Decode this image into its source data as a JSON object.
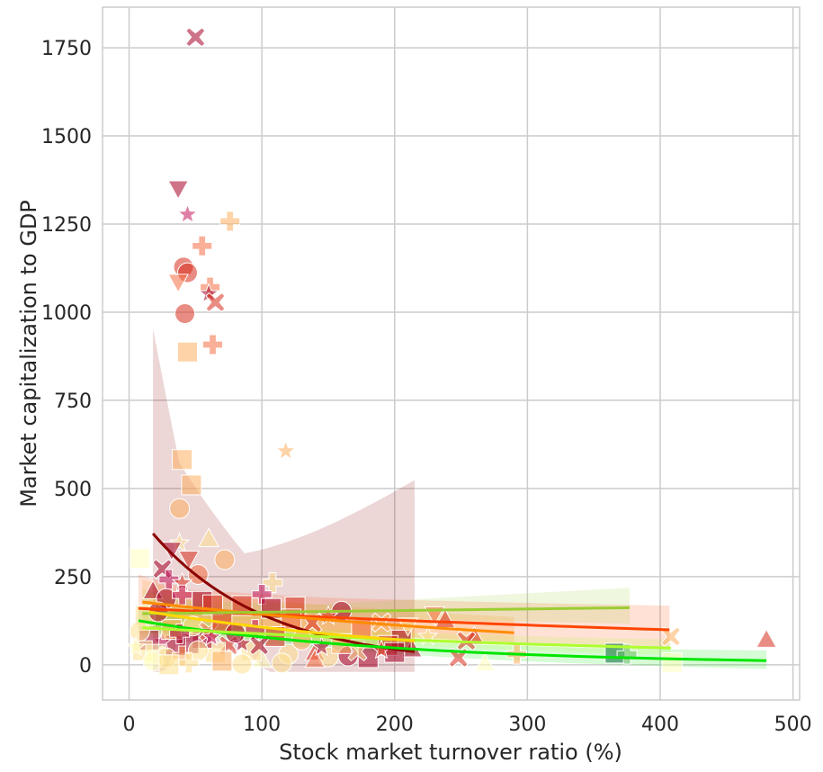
{
  "chart_data": {
    "type": "scatter",
    "title": "",
    "xlabel": "Stock market turnover ratio (%)",
    "ylabel": "Market capitalization to GDP",
    "xlim": [
      -20,
      505
    ],
    "ylim": [
      -100,
      1865
    ],
    "xticks": [
      0,
      100,
      200,
      300,
      400,
      500
    ],
    "yticks": [
      0,
      250,
      500,
      750,
      1000,
      1250,
      1500,
      1750
    ],
    "grid": true,
    "legend": "none",
    "palette": [
      "#a50026",
      "#d7301f",
      "#f46d43",
      "#fdae61",
      "#fee090",
      "#ffffbf",
      "#006837",
      "#66bd63",
      "#9acd32",
      "#00e600"
    ],
    "points": [
      {
        "x": 50,
        "y": 1780,
        "c": "#a50026",
        "m": "x"
      },
      {
        "x": 37,
        "y": 1350,
        "c": "#a50026",
        "m": "v"
      },
      {
        "x": 44,
        "y": 1277,
        "c": "#c2185b",
        "m": "star"
      },
      {
        "x": 76,
        "y": 1258,
        "c": "#fdae61",
        "m": "plus"
      },
      {
        "x": 55,
        "y": 1188,
        "c": "#f46d43",
        "m": "plus"
      },
      {
        "x": 41,
        "y": 1128,
        "c": "#d7301f",
        "m": "o"
      },
      {
        "x": 44,
        "y": 1112,
        "c": "#d7301f",
        "m": "o"
      },
      {
        "x": 37,
        "y": 1085,
        "c": "#f46d43",
        "m": "v"
      },
      {
        "x": 61,
        "y": 1071,
        "c": "#f46d43",
        "m": "plus"
      },
      {
        "x": 60,
        "y": 1052,
        "c": "#a50026",
        "m": "star"
      },
      {
        "x": 65,
        "y": 1028,
        "c": "#d7301f",
        "m": "x"
      },
      {
        "x": 42,
        "y": 996,
        "c": "#d7301f",
        "m": "o"
      },
      {
        "x": 63,
        "y": 908,
        "c": "#f46d43",
        "m": "plus"
      },
      {
        "x": 44,
        "y": 887,
        "c": "#fdae61",
        "m": "s"
      },
      {
        "x": 118,
        "y": 606,
        "c": "#fdae61",
        "m": "star"
      },
      {
        "x": 40,
        "y": 582,
        "c": "#fdae61",
        "m": "s"
      },
      {
        "x": 47,
        "y": 510,
        "c": "#fdae61",
        "m": "s"
      },
      {
        "x": 38,
        "y": 443,
        "c": "#fdae61",
        "m": "o"
      },
      {
        "x": 60,
        "y": 358,
        "c": "#fee090",
        "m": "^"
      },
      {
        "x": 38,
        "y": 345,
        "c": "#fee090",
        "m": "star"
      },
      {
        "x": 72,
        "y": 298,
        "c": "#fdae61",
        "m": "o"
      },
      {
        "x": 8,
        "y": 302,
        "c": "#ffffbf",
        "m": "s"
      },
      {
        "x": 108,
        "y": 233,
        "c": "#fee090",
        "m": "plus"
      },
      {
        "x": 32,
        "y": 325,
        "c": "#a50026",
        "m": "v"
      },
      {
        "x": 45,
        "y": 300,
        "c": "#d7301f",
        "m": "v"
      },
      {
        "x": 25,
        "y": 272,
        "c": "#a50026",
        "m": "x"
      },
      {
        "x": 52,
        "y": 256,
        "c": "#f46d43",
        "m": "o"
      },
      {
        "x": 30,
        "y": 242,
        "c": "#c2185b",
        "m": "plus"
      },
      {
        "x": 40,
        "y": 232,
        "c": "#d7301f",
        "m": "star"
      },
      {
        "x": 18,
        "y": 210,
        "c": "#a50026",
        "m": "^"
      },
      {
        "x": 28,
        "y": 188,
        "c": "#a50026",
        "m": "o"
      },
      {
        "x": 40,
        "y": 198,
        "c": "#c2185b",
        "m": "plus"
      },
      {
        "x": 100,
        "y": 200,
        "c": "#c2185b",
        "m": "plus"
      },
      {
        "x": 55,
        "y": 180,
        "c": "#a50026",
        "m": "s"
      },
      {
        "x": 63,
        "y": 170,
        "c": "#d7301f",
        "m": "s"
      },
      {
        "x": 85,
        "y": 168,
        "c": "#d7301f",
        "m": "s"
      },
      {
        "x": 107,
        "y": 160,
        "c": "#a50026",
        "m": "s"
      },
      {
        "x": 125,
        "y": 164,
        "c": "#d7301f",
        "m": "s"
      },
      {
        "x": 160,
        "y": 152,
        "c": "#a50026",
        "m": "o"
      },
      {
        "x": 122,
        "y": 130,
        "c": "#f46d43",
        "m": "s"
      },
      {
        "x": 138,
        "y": 118,
        "c": "#d7301f",
        "m": "x"
      },
      {
        "x": 150,
        "y": 138,
        "c": "#d7301f",
        "m": "star"
      },
      {
        "x": 230,
        "y": 142,
        "c": "#f46d43",
        "m": "v"
      },
      {
        "x": 238,
        "y": 128,
        "c": "#d7301f",
        "m": "^"
      },
      {
        "x": 260,
        "y": 80,
        "c": "#d7301f",
        "m": "^"
      },
      {
        "x": 254,
        "y": 68,
        "c": "#d7301f",
        "m": "x"
      },
      {
        "x": 248,
        "y": 20,
        "c": "#d7301f",
        "m": "x"
      },
      {
        "x": 408,
        "y": 80,
        "c": "#fdae61",
        "m": "x"
      },
      {
        "x": 292,
        "y": 30,
        "c": "#fdae61",
        "m": "plus"
      },
      {
        "x": 268,
        "y": 5,
        "c": "#ffffbf",
        "m": "^"
      },
      {
        "x": 409,
        "y": 6,
        "c": "#ffffbf",
        "m": "s"
      },
      {
        "x": 366,
        "y": 33,
        "c": "#006837",
        "m": "s"
      },
      {
        "x": 375,
        "y": 30,
        "c": "#66bd63",
        "m": "plus"
      },
      {
        "x": 480,
        "y": 72,
        "c": "#d7301f",
        "m": "^"
      },
      {
        "x": 213,
        "y": 45,
        "c": "#a50026",
        "m": "^"
      },
      {
        "x": 205,
        "y": 70,
        "c": "#a50026",
        "m": "s"
      },
      {
        "x": 195,
        "y": 55,
        "c": "#d7301f",
        "m": "s"
      },
      {
        "x": 180,
        "y": 20,
        "c": "#a50026",
        "m": "s"
      },
      {
        "x": 165,
        "y": 25,
        "c": "#a50026",
        "m": "o"
      },
      {
        "x": 200,
        "y": 35,
        "c": "#a50026",
        "m": "s"
      },
      {
        "x": 190,
        "y": 42,
        "c": "#d7301f",
        "m": "star"
      },
      {
        "x": 140,
        "y": 35,
        "c": "#d7301f",
        "m": "^"
      },
      {
        "x": 150,
        "y": 22,
        "c": "#fee090",
        "m": "o"
      },
      {
        "x": 120,
        "y": 30,
        "c": "#fee090",
        "m": "o"
      },
      {
        "x": 100,
        "y": 15,
        "c": "#ffffbf",
        "m": "^"
      },
      {
        "x": 92,
        "y": 40,
        "c": "#fee090",
        "m": "s"
      },
      {
        "x": 75,
        "y": 55,
        "c": "#d7301f",
        "m": "x"
      },
      {
        "x": 85,
        "y": 60,
        "c": "#a50026",
        "m": "star"
      },
      {
        "x": 65,
        "y": 35,
        "c": "#fee090",
        "m": "s"
      },
      {
        "x": 55,
        "y": 75,
        "c": "#a50026",
        "m": "s"
      },
      {
        "x": 45,
        "y": 60,
        "c": "#a50026",
        "m": "s"
      },
      {
        "x": 35,
        "y": 55,
        "c": "#a50026",
        "m": "s"
      },
      {
        "x": 25,
        "y": 65,
        "c": "#c2185b",
        "m": "star"
      },
      {
        "x": 15,
        "y": 70,
        "c": "#a50026",
        "m": "s"
      },
      {
        "x": 10,
        "y": 40,
        "c": "#fee090",
        "m": "s"
      },
      {
        "x": 20,
        "y": 30,
        "c": "#ffffbf",
        "m": "s"
      },
      {
        "x": 28,
        "y": 20,
        "c": "#fee090",
        "m": "o"
      },
      {
        "x": 40,
        "y": 25,
        "c": "#fdae61",
        "m": "plus"
      },
      {
        "x": 52,
        "y": 40,
        "c": "#fee090",
        "m": "o"
      },
      {
        "x": 32,
        "y": 100,
        "c": "#fdae61",
        "m": "s"
      },
      {
        "x": 48,
        "y": 110,
        "c": "#fee090",
        "m": "o"
      },
      {
        "x": 60,
        "y": 95,
        "c": "#f46d43",
        "m": "x"
      },
      {
        "x": 70,
        "y": 120,
        "c": "#d7301f",
        "m": "s"
      },
      {
        "x": 80,
        "y": 90,
        "c": "#a50026",
        "m": "o"
      },
      {
        "x": 95,
        "y": 100,
        "c": "#c2185b",
        "m": "plus"
      },
      {
        "x": 110,
        "y": 80,
        "c": "#d7301f",
        "m": "s"
      },
      {
        "x": 130,
        "y": 70,
        "c": "#fdae61",
        "m": "o"
      },
      {
        "x": 160,
        "y": 60,
        "c": "#fdae61",
        "m": "s"
      },
      {
        "x": 175,
        "y": 100,
        "c": "#f46d43",
        "m": "s"
      },
      {
        "x": 210,
        "y": 110,
        "c": "#fee090",
        "m": "v"
      },
      {
        "x": 225,
        "y": 80,
        "c": "#fee090",
        "m": "star"
      },
      {
        "x": 12,
        "y": 140,
        "c": "#fee090",
        "m": "s"
      },
      {
        "x": 22,
        "y": 150,
        "c": "#a50026",
        "m": "o"
      },
      {
        "x": 8,
        "y": 95,
        "c": "#fee090",
        "m": "o"
      },
      {
        "x": 5,
        "y": 50,
        "c": "#ffffbf",
        "m": "star"
      },
      {
        "x": 18,
        "y": 10,
        "c": "#ffffbf",
        "m": "o"
      },
      {
        "x": 30,
        "y": 0,
        "c": "#fee090",
        "m": "s"
      },
      {
        "x": 45,
        "y": 5,
        "c": "#fee090",
        "m": "plus"
      },
      {
        "x": 70,
        "y": 10,
        "c": "#fdae61",
        "m": "s"
      },
      {
        "x": 85,
        "y": 2,
        "c": "#fee090",
        "m": "o"
      },
      {
        "x": 115,
        "y": 5,
        "c": "#fee090",
        "m": "o"
      },
      {
        "x": 140,
        "y": 15,
        "c": "#f46d43",
        "m": "^"
      },
      {
        "x": 62,
        "y": 78,
        "c": "#c2185b",
        "m": "star"
      },
      {
        "x": 98,
        "y": 55,
        "c": "#a50026",
        "m": "x"
      },
      {
        "x": 38,
        "y": 88,
        "c": "#a50026",
        "m": "plus"
      },
      {
        "x": 190,
        "y": 120,
        "c": "#fdae61",
        "m": "x"
      },
      {
        "x": 145,
        "y": 50,
        "c": "#a50026",
        "m": "star"
      },
      {
        "x": 172,
        "y": 38,
        "c": "#fee090",
        "m": "x"
      }
    ],
    "fits": [
      {
        "color": "#8b0000",
        "x": [
          18,
          215
        ],
        "a": 372,
        "b": 0.0117,
        "band": [
          150,
          520
        ]
      },
      {
        "color": "#ff4500",
        "x": [
          7,
          407
        ],
        "a": 160,
        "b": 0.0012,
        "band": [
          55,
          70
        ]
      },
      {
        "color": "#ff8c00",
        "x": [
          10,
          290
        ],
        "a": 178,
        "b": 0.0024,
        "band": [
          40,
          45
        ]
      },
      {
        "color": "#9acd32",
        "x": [
          10,
          377
        ],
        "a": 145,
        "b": -0.0003,
        "band": [
          20,
          60
        ]
      },
      {
        "color": "#00e600",
        "x": [
          7,
          480
        ],
        "a": 125,
        "b": 0.005,
        "band": [
          20,
          30
        ]
      },
      {
        "color": "#adff2f",
        "x": [
          10,
          408
        ],
        "a": 105,
        "b": 0.002,
        "band": [
          20,
          25
        ]
      },
      {
        "color": "#ffd700",
        "x": [
          15,
          215
        ],
        "a": 150,
        "b": 0.004,
        "band": [
          30,
          40
        ]
      }
    ]
  }
}
